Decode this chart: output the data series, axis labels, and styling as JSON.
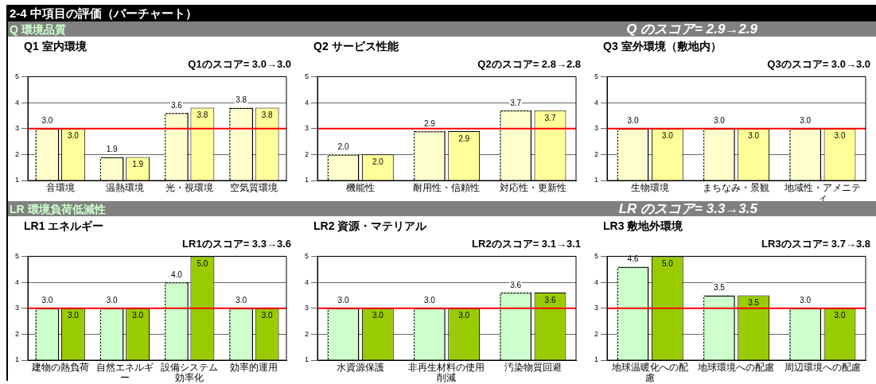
{
  "chart_data": [
    {
      "type": "other",
      "title": "2-4  中項目の評価（バーチャート）"
    },
    {
      "type": "other",
      "title": "Q  環境品質",
      "annotations": [
        "Q のスコア=  2.9→2.9"
      ]
    },
    {
      "type": "bar",
      "title": "Q1 室内環境",
      "subtitle": "Q1のスコア=  3.0→3.0",
      "categories": [
        "音環境",
        "温熱環境",
        "光・視環境",
        "空気質環境"
      ],
      "series": [
        {
          "color": "#ffffcc",
          "line_style": "dotted",
          "values": [
            3.0,
            1.9,
            3.6,
            3.8
          ],
          "value_labels": [
            "3.0",
            "1.9",
            "3.6",
            "3.8"
          ]
        },
        {
          "color": "#ffff99",
          "values": [
            3.0,
            1.9,
            3.8,
            3.8
          ],
          "value_labels": [
            "3.0",
            "1.9",
            "3.8",
            "3.8"
          ]
        }
      ],
      "ylim": [
        1,
        5
      ],
      "yticks": [
        1,
        2,
        3,
        4,
        5
      ],
      "grid": "y",
      "legend": false,
      "ref_lines": [
        {
          "axis": "y",
          "value": 3,
          "color": "#ff0000"
        }
      ]
    },
    {
      "type": "bar",
      "title": "Q2 サービス性能",
      "subtitle": "Q2のスコア=  2.8→2.8",
      "categories": [
        "機能性",
        "耐用性・信頼性",
        "対応性・更新性"
      ],
      "series": [
        {
          "color": "#ffffcc",
          "line_style": "dotted",
          "values": [
            2.0,
            2.9,
            3.7
          ],
          "value_labels": [
            "2.0",
            "2.9",
            "3.7"
          ]
        },
        {
          "color": "#ffff99",
          "values": [
            2.0,
            2.9,
            3.7
          ],
          "value_labels": [
            "2.0",
            "2.9",
            "3.7"
          ]
        }
      ],
      "ylim": [
        1,
        5
      ],
      "yticks": [
        1,
        2,
        3,
        4,
        5
      ],
      "grid": "y",
      "legend": false,
      "ref_lines": [
        {
          "axis": "y",
          "value": 3,
          "color": "#ff0000"
        }
      ]
    },
    {
      "type": "bar",
      "title": "Q3 室外環境（敷地内）",
      "subtitle": "Q3のスコア=  3.0→3.0",
      "categories": [
        "生物環境",
        "まちなみ・景観",
        "地域性・アメニティ"
      ],
      "series": [
        {
          "color": "#ffffcc",
          "line_style": "dotted",
          "values": [
            3.0,
            3.0,
            3.0
          ],
          "value_labels": [
            "3.0",
            "3.0",
            "3.0"
          ]
        },
        {
          "color": "#ffff99",
          "values": [
            3.0,
            3.0,
            3.0
          ],
          "value_labels": [
            "3.0",
            "3.0",
            "3.0"
          ]
        }
      ],
      "ylim": [
        1,
        5
      ],
      "yticks": [
        1,
        2,
        3,
        4,
        5
      ],
      "grid": "y",
      "legend": false,
      "ref_lines": [
        {
          "axis": "y",
          "value": 3,
          "color": "#ff0000"
        }
      ]
    },
    {
      "type": "other",
      "title": "LR  環境負荷低減性",
      "annotations": [
        "LR のスコア=  3.3→3.5"
      ]
    },
    {
      "type": "bar",
      "title": "LR1 エネルギー",
      "subtitle": "LR1のスコア=  3.3→3.6",
      "categories": [
        "建物の熱負荷",
        "自然エネルギー",
        "設備システム効率化",
        "効率的運用"
      ],
      "series": [
        {
          "color": "#ccffcc",
          "line_style": "dotted",
          "values": [
            3.0,
            3.0,
            4.0,
            3.0
          ],
          "value_labels": [
            "3.0",
            "3.0",
            "4.0",
            "3.0"
          ]
        },
        {
          "color": "#99cc00",
          "values": [
            3.0,
            3.0,
            5.0,
            3.0
          ],
          "value_labels": [
            "3.0",
            "3.0",
            "5.0",
            "3.0"
          ]
        }
      ],
      "ylim": [
        1,
        5
      ],
      "yticks": [
        1,
        2,
        3,
        4,
        5
      ],
      "grid": "y",
      "legend": false,
      "ref_lines": [
        {
          "axis": "y",
          "value": 3,
          "color": "#ff0000"
        }
      ]
    },
    {
      "type": "bar",
      "title": "LR2 資源・マテリアル",
      "subtitle": "LR2のスコア=  3.1→3.1",
      "categories": [
        "水資源保護",
        "非再生材料の使用削減",
        "汚染物質回避"
      ],
      "series": [
        {
          "color": "#ccffcc",
          "line_style": "dotted",
          "values": [
            3.0,
            3.0,
            3.6
          ],
          "value_labels": [
            "3.0",
            "3.0",
            "3.6"
          ]
        },
        {
          "color": "#99cc00",
          "values": [
            3.0,
            3.0,
            3.6
          ],
          "value_labels": [
            "3.0",
            "3.0",
            "3.6"
          ]
        }
      ],
      "ylim": [
        1,
        5
      ],
      "yticks": [
        1,
        2,
        3,
        4,
        5
      ],
      "grid": "y",
      "legend": false,
      "ref_lines": [
        {
          "axis": "y",
          "value": 3,
          "color": "#ff0000"
        }
      ]
    },
    {
      "type": "bar",
      "title": "LR3 敷地外環境",
      "subtitle": "LR3のスコア=  3.7→3.8",
      "categories": [
        "地球温暖化への配慮",
        "地球環境への配慮",
        "周辺環境への配慮"
      ],
      "series": [
        {
          "color": "#ccffcc",
          "line_style": "dotted",
          "values": [
            4.6,
            3.5,
            3.0
          ],
          "value_labels": [
            "4.6",
            "3.5",
            "3.0"
          ]
        },
        {
          "color": "#99cc00",
          "values": [
            5.0,
            3.5,
            3.0
          ],
          "value_labels": [
            "5.0",
            "3.5",
            "3.0"
          ]
        }
      ],
      "ylim": [
        1,
        5
      ],
      "yticks": [
        1,
        2,
        3,
        4,
        5
      ],
      "grid": "y",
      "legend": false,
      "ref_lines": [
        {
          "axis": "y",
          "value": 3,
          "color": "#ff0000"
        }
      ]
    }
  ]
}
